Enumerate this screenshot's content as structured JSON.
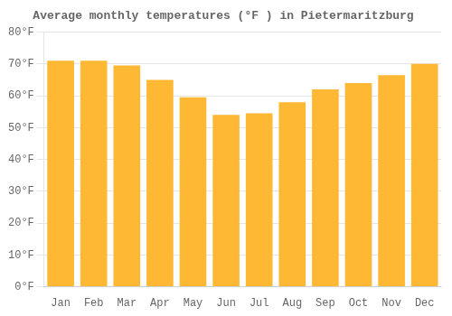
{
  "chart_data": {
    "type": "bar",
    "title": "Average monthly temperatures (°F ) in Pietermaritzburg",
    "categories": [
      "Jan",
      "Feb",
      "Mar",
      "Apr",
      "May",
      "Jun",
      "Jul",
      "Aug",
      "Sep",
      "Oct",
      "Nov",
      "Dec"
    ],
    "values": [
      71,
      71,
      69.5,
      65,
      59.5,
      54,
      54.5,
      58,
      62,
      64,
      66.5,
      70
    ],
    "color": "#FFB833",
    "ylim": [
      0,
      80
    ],
    "yticks": [
      {
        "value": 0,
        "label": "0°F"
      },
      {
        "value": 10,
        "label": "10°F"
      },
      {
        "value": 20,
        "label": "20°F"
      },
      {
        "value": 30,
        "label": "30°F"
      },
      {
        "value": 40,
        "label": "40°F"
      },
      {
        "value": 50,
        "label": "50°F"
      },
      {
        "value": 60,
        "label": "60°F"
      },
      {
        "value": 70,
        "label": "70°F"
      },
      {
        "value": 80,
        "label": "80°F"
      }
    ],
    "grid": true
  }
}
